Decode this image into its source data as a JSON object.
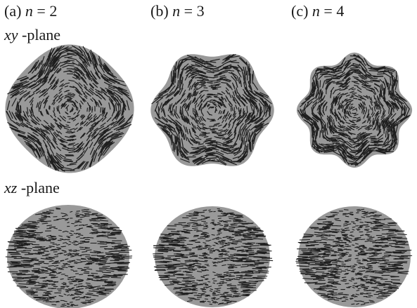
{
  "figure": {
    "columns": [
      {
        "tag": "(a)",
        "var": "n",
        "eq": "=",
        "val": "2"
      },
      {
        "tag": "(b)",
        "var": "n",
        "eq": "=",
        "val": "3"
      },
      {
        "tag": "(c)",
        "var": "n",
        "eq": "=",
        "val": "4"
      }
    ],
    "rows": [
      {
        "var": "xy",
        "suffix": " -plane"
      },
      {
        "var": "xz",
        "suffix": " -plane"
      }
    ],
    "colors": {
      "domain": "#999999",
      "streak": "#1e1e1e",
      "background": "#ffffff"
    }
  }
}
